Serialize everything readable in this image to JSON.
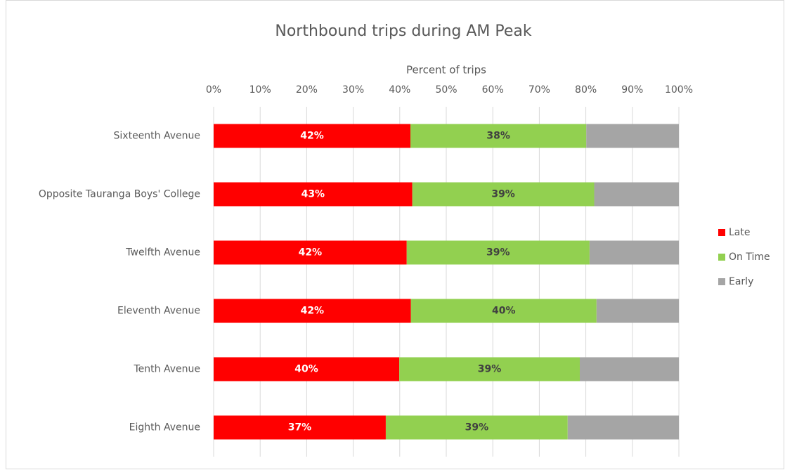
{
  "chart_data": {
    "type": "stacked-bar-horizontal",
    "title": "Northbound trips during AM Peak",
    "x_label": "Percent of trips",
    "categories": [
      "Sixteenth Avenue",
      "Opposite Tauranga Boys' College",
      "Twelfth Avenue",
      "Eleventh Avenue",
      "Tenth Avenue",
      "Eighth Avenue"
    ],
    "series": [
      {
        "name": "Late",
        "color": "#ff0000",
        "label_color": "#ffffff",
        "values": [
          42.3,
          42.7,
          41.5,
          42.4,
          39.9,
          37.0
        ],
        "value_labels": [
          "42%",
          "43%",
          "42%",
          "42%",
          "40%",
          "37%"
        ]
      },
      {
        "name": "On Time",
        "color": "#92d050",
        "label_color": "#404040",
        "values": [
          37.8,
          39.1,
          39.3,
          39.9,
          38.8,
          39.1
        ],
        "value_labels": [
          "38%",
          "39%",
          "39%",
          "40%",
          "39%",
          "39%"
        ]
      },
      {
        "name": "Early",
        "color": "#a5a5a5",
        "values": [
          19.9,
          18.2,
          19.2,
          17.7,
          21.3,
          23.9
        ]
      }
    ],
    "xlim": [
      0,
      100
    ],
    "xticks": [
      {
        "value": 0,
        "label": "0%"
      },
      {
        "value": 10,
        "label": "10%"
      },
      {
        "value": 20,
        "label": "20%"
      },
      {
        "value": 30,
        "label": "30%"
      },
      {
        "value": 40,
        "label": "40%"
      },
      {
        "value": 50,
        "label": "50%"
      },
      {
        "value": 60,
        "label": "60%"
      },
      {
        "value": 70,
        "label": "70%"
      },
      {
        "value": 80,
        "label": "80%"
      },
      {
        "value": 90,
        "label": "90%"
      },
      {
        "value": 100,
        "label": "100%"
      }
    ],
    "grid": true,
    "legend": "right"
  }
}
